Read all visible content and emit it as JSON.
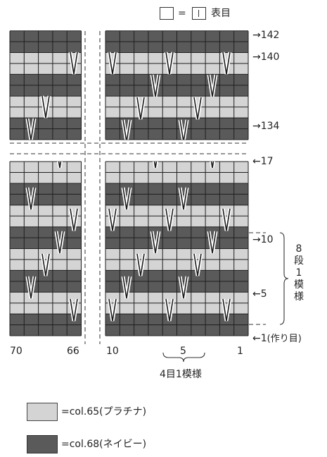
{
  "legend_top": {
    "equals": "=",
    "stitch_name": "表目"
  },
  "right_labels": {
    "r142": "→142",
    "r140": "→140",
    "r134": "→134",
    "r17": "←17",
    "r10": "→10",
    "r5": "←5",
    "r1": "←1",
    "r1_note": "(作り目)"
  },
  "repeat_rows": {
    "chars": [
      "8",
      "段",
      "1",
      "模",
      "様"
    ]
  },
  "bottom_numbers": {
    "n70": "70",
    "n66": "66",
    "n10": "10",
    "n5": "5",
    "n1": "1"
  },
  "repeat_stitch_label": "4目1模様",
  "color_legend": [
    {
      "label": "=col.65(プラチナ)",
      "color": "#d4d4d4"
    },
    {
      "label": "=col.68(ネイビー)",
      "color": "#5a5a5a"
    }
  ],
  "colors": {
    "navy": "#5a5a5a",
    "platinum": "#d4d4d4",
    "grid": "#1e1e1e"
  }
}
